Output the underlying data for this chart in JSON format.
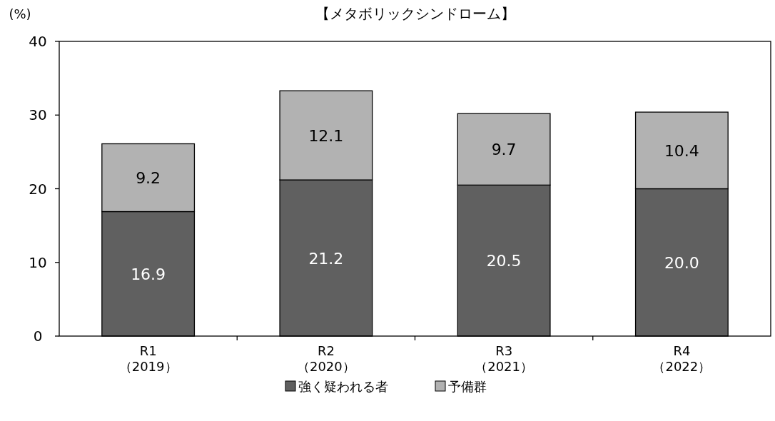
{
  "chart_data": {
    "type": "bar",
    "stacked": true,
    "title": "【メタボリックシンドローム】",
    "ylabel": "(%)",
    "categories": [
      "R1\n（2019）",
      "R2\n（2020）",
      "R3\n（2021）",
      "R4\n（2022）"
    ],
    "series": [
      {
        "name": "強く疑われる者",
        "color": "#606060",
        "values": [
          16.9,
          21.2,
          20.5,
          20.0
        ],
        "value_labels": [
          "16.9",
          "21.2",
          "20.5",
          "20.0"
        ]
      },
      {
        "name": "予備群",
        "color": "#b2b2b2",
        "values": [
          9.2,
          12.1,
          9.7,
          10.4
        ],
        "value_labels": [
          "9.2",
          "12.1",
          "9.7",
          "10.4"
        ]
      }
    ],
    "ylim": [
      0,
      40
    ],
    "yticks": [
      0,
      10,
      20,
      30,
      40
    ],
    "grid": false,
    "legend": "bottom"
  }
}
